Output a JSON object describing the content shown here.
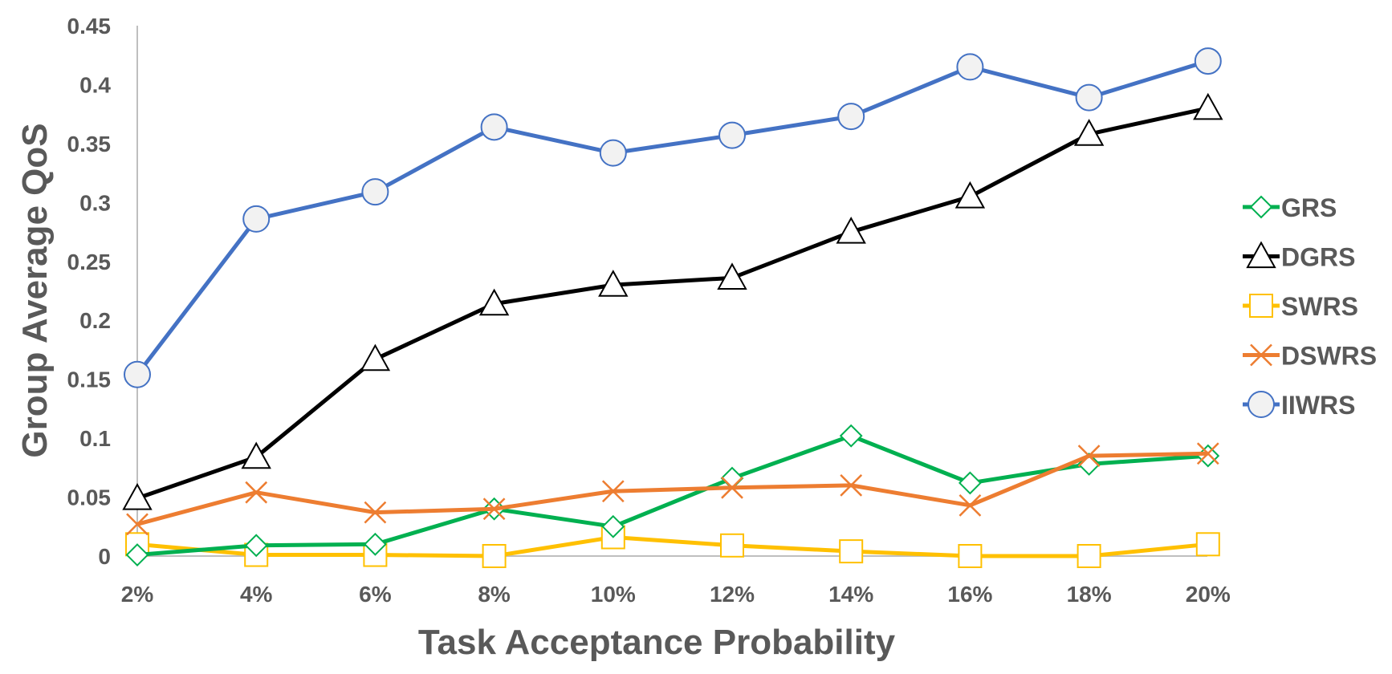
{
  "chart_data": {
    "type": "line",
    "title": "",
    "xlabel": "Task Acceptance Probability",
    "ylabel": "Group Average QoS",
    "categories": [
      "2%",
      "4%",
      "6%",
      "8%",
      "10%",
      "12%",
      "14%",
      "16%",
      "18%",
      "20%"
    ],
    "ylim": [
      0,
      0.45
    ],
    "yticks": [
      "0",
      "0.05",
      "0.1",
      "0.15",
      "0.2",
      "0.25",
      "0.3",
      "0.35",
      "0.4",
      "0.45"
    ],
    "grid": false,
    "legend_position": "right",
    "series": [
      {
        "name": "GRS",
        "color": "#00B050",
        "marker": "diamond",
        "values": [
          0.001,
          0.009,
          0.01,
          0.04,
          0.025,
          0.066,
          0.102,
          0.062,
          0.078,
          0.085
        ]
      },
      {
        "name": "DGRS",
        "color": "#000000",
        "marker": "triangle",
        "values": [
          0.049,
          0.084,
          0.167,
          0.214,
          0.23,
          0.236,
          0.275,
          0.305,
          0.358,
          0.38
        ]
      },
      {
        "name": "SWRS",
        "color": "#FFC000",
        "marker": "square",
        "values": [
          0.01,
          0.001,
          0.001,
          0.0,
          0.016,
          0.009,
          0.004,
          0.0,
          0.0,
          0.01
        ]
      },
      {
        "name": "DSWRS",
        "color": "#ED7D31",
        "marker": "x",
        "values": [
          0.027,
          0.054,
          0.037,
          0.04,
          0.055,
          0.058,
          0.06,
          0.043,
          0.085,
          0.087
        ]
      },
      {
        "name": "IIWRS",
        "color": "#4472C4",
        "marker": "circle",
        "values": [
          0.154,
          0.286,
          0.309,
          0.364,
          0.342,
          0.357,
          0.373,
          0.415,
          0.389,
          0.42
        ]
      }
    ]
  }
}
